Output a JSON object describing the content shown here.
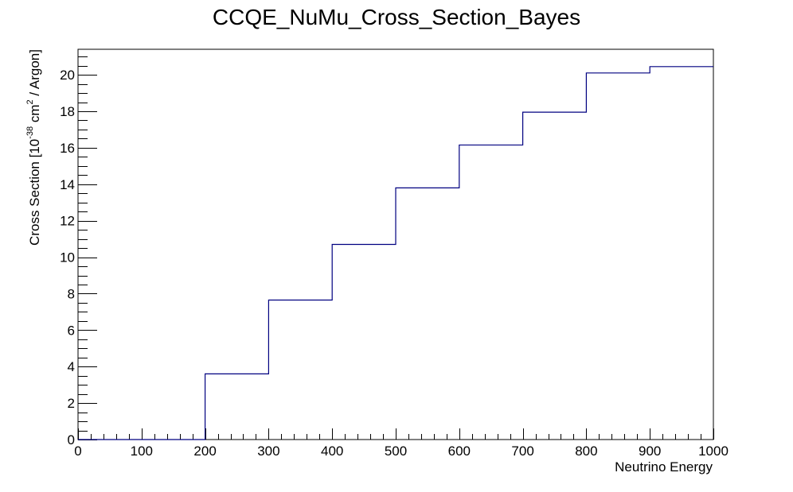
{
  "chart_data": {
    "type": "histogram-step",
    "title": "CCQE_NuMu_Cross_Section_Bayes",
    "xlabel": "Neutrino Energy",
    "ylabel": {
      "prefix": "Cross Section [10",
      "exponent": "-38",
      "middle": " cm",
      "square": "2",
      "suffix": " / Argon]"
    },
    "xlim": [
      0,
      1000
    ],
    "ylim": [
      0,
      21.4
    ],
    "x_ticks": [
      0,
      100,
      200,
      300,
      400,
      500,
      600,
      700,
      800,
      900,
      1000
    ],
    "x_tick_labels": [
      "0",
      "100",
      "200",
      "300",
      "400",
      "500",
      "600",
      "700",
      "800",
      "900",
      "1000"
    ],
    "y_ticks": [
      0,
      2,
      4,
      6,
      8,
      10,
      12,
      14,
      16,
      18,
      20
    ],
    "y_tick_labels": [
      "0",
      "2",
      "4",
      "6",
      "8",
      "10",
      "12",
      "14",
      "16",
      "18",
      "20"
    ],
    "grid": false,
    "legend": "none",
    "line_color": "#000080",
    "bin_edges": [
      0,
      100,
      200,
      300,
      400,
      500,
      600,
      700,
      800,
      900,
      1000
    ],
    "values": [
      0,
      0,
      3.6,
      7.65,
      10.7,
      13.8,
      16.15,
      17.95,
      20.1,
      20.45
    ]
  }
}
